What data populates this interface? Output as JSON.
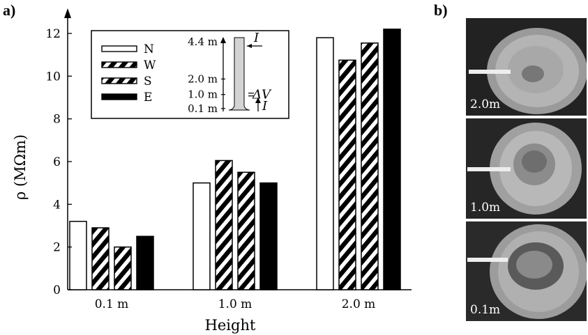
{
  "panel_a": {
    "letter": "a)"
  },
  "panel_b": {
    "letter": "b)",
    "photos": [
      {
        "label": "2.0m"
      },
      {
        "label": "1.0m"
      },
      {
        "label": "0.1m"
      }
    ]
  },
  "chart_data": {
    "type": "bar",
    "categories": [
      "0.1 m",
      "1.0 m",
      "2.0 m"
    ],
    "series": [
      {
        "name": "N",
        "pattern": "open",
        "values": [
          3.2,
          5.0,
          11.8
        ]
      },
      {
        "name": "W",
        "pattern": "hatched",
        "values": [
          2.9,
          6.05,
          10.75
        ]
      },
      {
        "name": "S",
        "pattern": "hatched",
        "values": [
          2.0,
          5.5,
          11.55
        ]
      },
      {
        "name": "E",
        "pattern": "solid",
        "values": [
          2.5,
          5.0,
          12.2
        ]
      }
    ],
    "ylabel": "ρ (MΩm)",
    "xlabel": "Height",
    "ylim": [
      0,
      13
    ],
    "yticks": [
      0,
      2,
      4,
      6,
      8,
      10,
      12
    ],
    "grid": false,
    "legend_position": "top-left",
    "inset": {
      "height_labels": [
        "4.4 m",
        "2.0 m",
        "1.0 m",
        "0.1 m"
      ],
      "heights": [
        4.4,
        2.0,
        1.0,
        0.1
      ],
      "current_top": "I",
      "current_bottom": "I",
      "voltage": "ΔV"
    },
    "colors": {
      "bar_fill": "#000000",
      "open_fill": "#ffffff",
      "trunk": "#d4d4d4"
    }
  }
}
